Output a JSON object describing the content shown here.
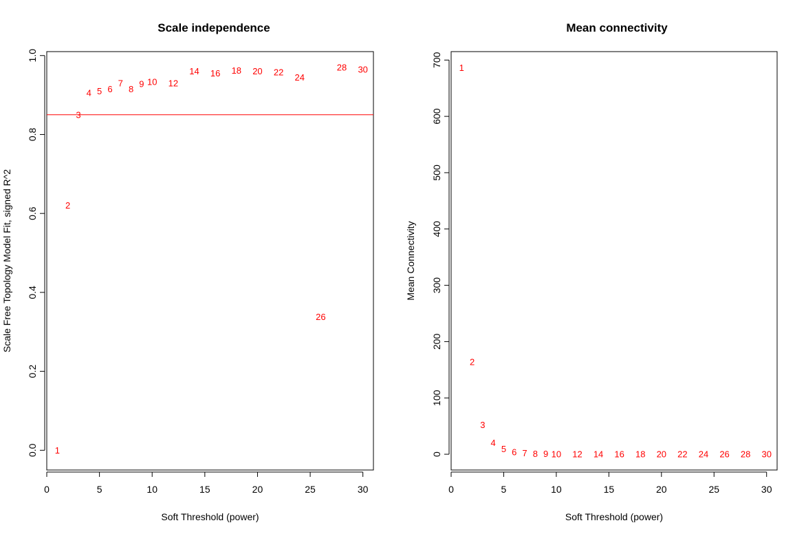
{
  "chart_data": [
    {
      "type": "scatter",
      "title": "Scale independence",
      "xlabel": "Soft Threshold (power)",
      "ylabel": "Scale Free Topology Model Fit, signed R^2",
      "xlim": [
        0,
        31
      ],
      "ylim": [
        -0.05,
        1.01
      ],
      "xticks": [
        "0",
        "5",
        "10",
        "15",
        "20",
        "25",
        "30"
      ],
      "yticks": [
        "0.0",
        "0.2",
        "0.4",
        "0.6",
        "0.8",
        "1.0"
      ],
      "point_color": "#ff0000",
      "hline": 0.85,
      "hline_color": "#ff0000",
      "points": [
        {
          "label": "1",
          "x": 1,
          "y": 0.0
        },
        {
          "label": "2",
          "x": 2,
          "y": 0.62
        },
        {
          "label": "3",
          "x": 3,
          "y": 0.85
        },
        {
          "label": "4",
          "x": 4,
          "y": 0.905
        },
        {
          "label": "5",
          "x": 5,
          "y": 0.91
        },
        {
          "label": "6",
          "x": 6,
          "y": 0.915
        },
        {
          "label": "7",
          "x": 7,
          "y": 0.93
        },
        {
          "label": "8",
          "x": 8,
          "y": 0.915
        },
        {
          "label": "9",
          "x": 9,
          "y": 0.928
        },
        {
          "label": "10",
          "x": 10,
          "y": 0.933
        },
        {
          "label": "12",
          "x": 12,
          "y": 0.93
        },
        {
          "label": "14",
          "x": 14,
          "y": 0.96
        },
        {
          "label": "16",
          "x": 16,
          "y": 0.955
        },
        {
          "label": "18",
          "x": 18,
          "y": 0.962
        },
        {
          "label": "20",
          "x": 20,
          "y": 0.96
        },
        {
          "label": "22",
          "x": 22,
          "y": 0.958
        },
        {
          "label": "24",
          "x": 24,
          "y": 0.945
        },
        {
          "label": "26",
          "x": 26,
          "y": 0.338
        },
        {
          "label": "28",
          "x": 28,
          "y": 0.97
        },
        {
          "label": "30",
          "x": 30,
          "y": 0.965
        }
      ]
    },
    {
      "type": "scatter",
      "title": "Mean connectivity",
      "xlabel": "Soft Threshold (power)",
      "ylabel": "Mean Connectivity",
      "xlim": [
        0,
        31
      ],
      "ylim": [
        -28,
        715
      ],
      "xticks": [
        "0",
        "5",
        "10",
        "15",
        "20",
        "25",
        "30"
      ],
      "yticks": [
        "0",
        "100",
        "200",
        "300",
        "400",
        "500",
        "600",
        "700"
      ],
      "point_color": "#ff0000",
      "points": [
        {
          "label": "1",
          "x": 1,
          "y": 686
        },
        {
          "label": "2",
          "x": 2,
          "y": 164
        },
        {
          "label": "3",
          "x": 3,
          "y": 52
        },
        {
          "label": "4",
          "x": 4,
          "y": 20
        },
        {
          "label": "5",
          "x": 5,
          "y": 9
        },
        {
          "label": "6",
          "x": 6,
          "y": 4
        },
        {
          "label": "7",
          "x": 7,
          "y": 2
        },
        {
          "label": "8",
          "x": 8,
          "y": 1
        },
        {
          "label": "9",
          "x": 9,
          "y": 1
        },
        {
          "label": "10",
          "x": 10,
          "y": 0
        },
        {
          "label": "12",
          "x": 12,
          "y": 0
        },
        {
          "label": "14",
          "x": 14,
          "y": 0
        },
        {
          "label": "16",
          "x": 16,
          "y": 0
        },
        {
          "label": "18",
          "x": 18,
          "y": 0
        },
        {
          "label": "20",
          "x": 20,
          "y": 0
        },
        {
          "label": "22",
          "x": 22,
          "y": 0
        },
        {
          "label": "24",
          "x": 24,
          "y": 0
        },
        {
          "label": "26",
          "x": 26,
          "y": 0
        },
        {
          "label": "28",
          "x": 28,
          "y": 0
        },
        {
          "label": "30",
          "x": 30,
          "y": 0
        }
      ]
    }
  ]
}
